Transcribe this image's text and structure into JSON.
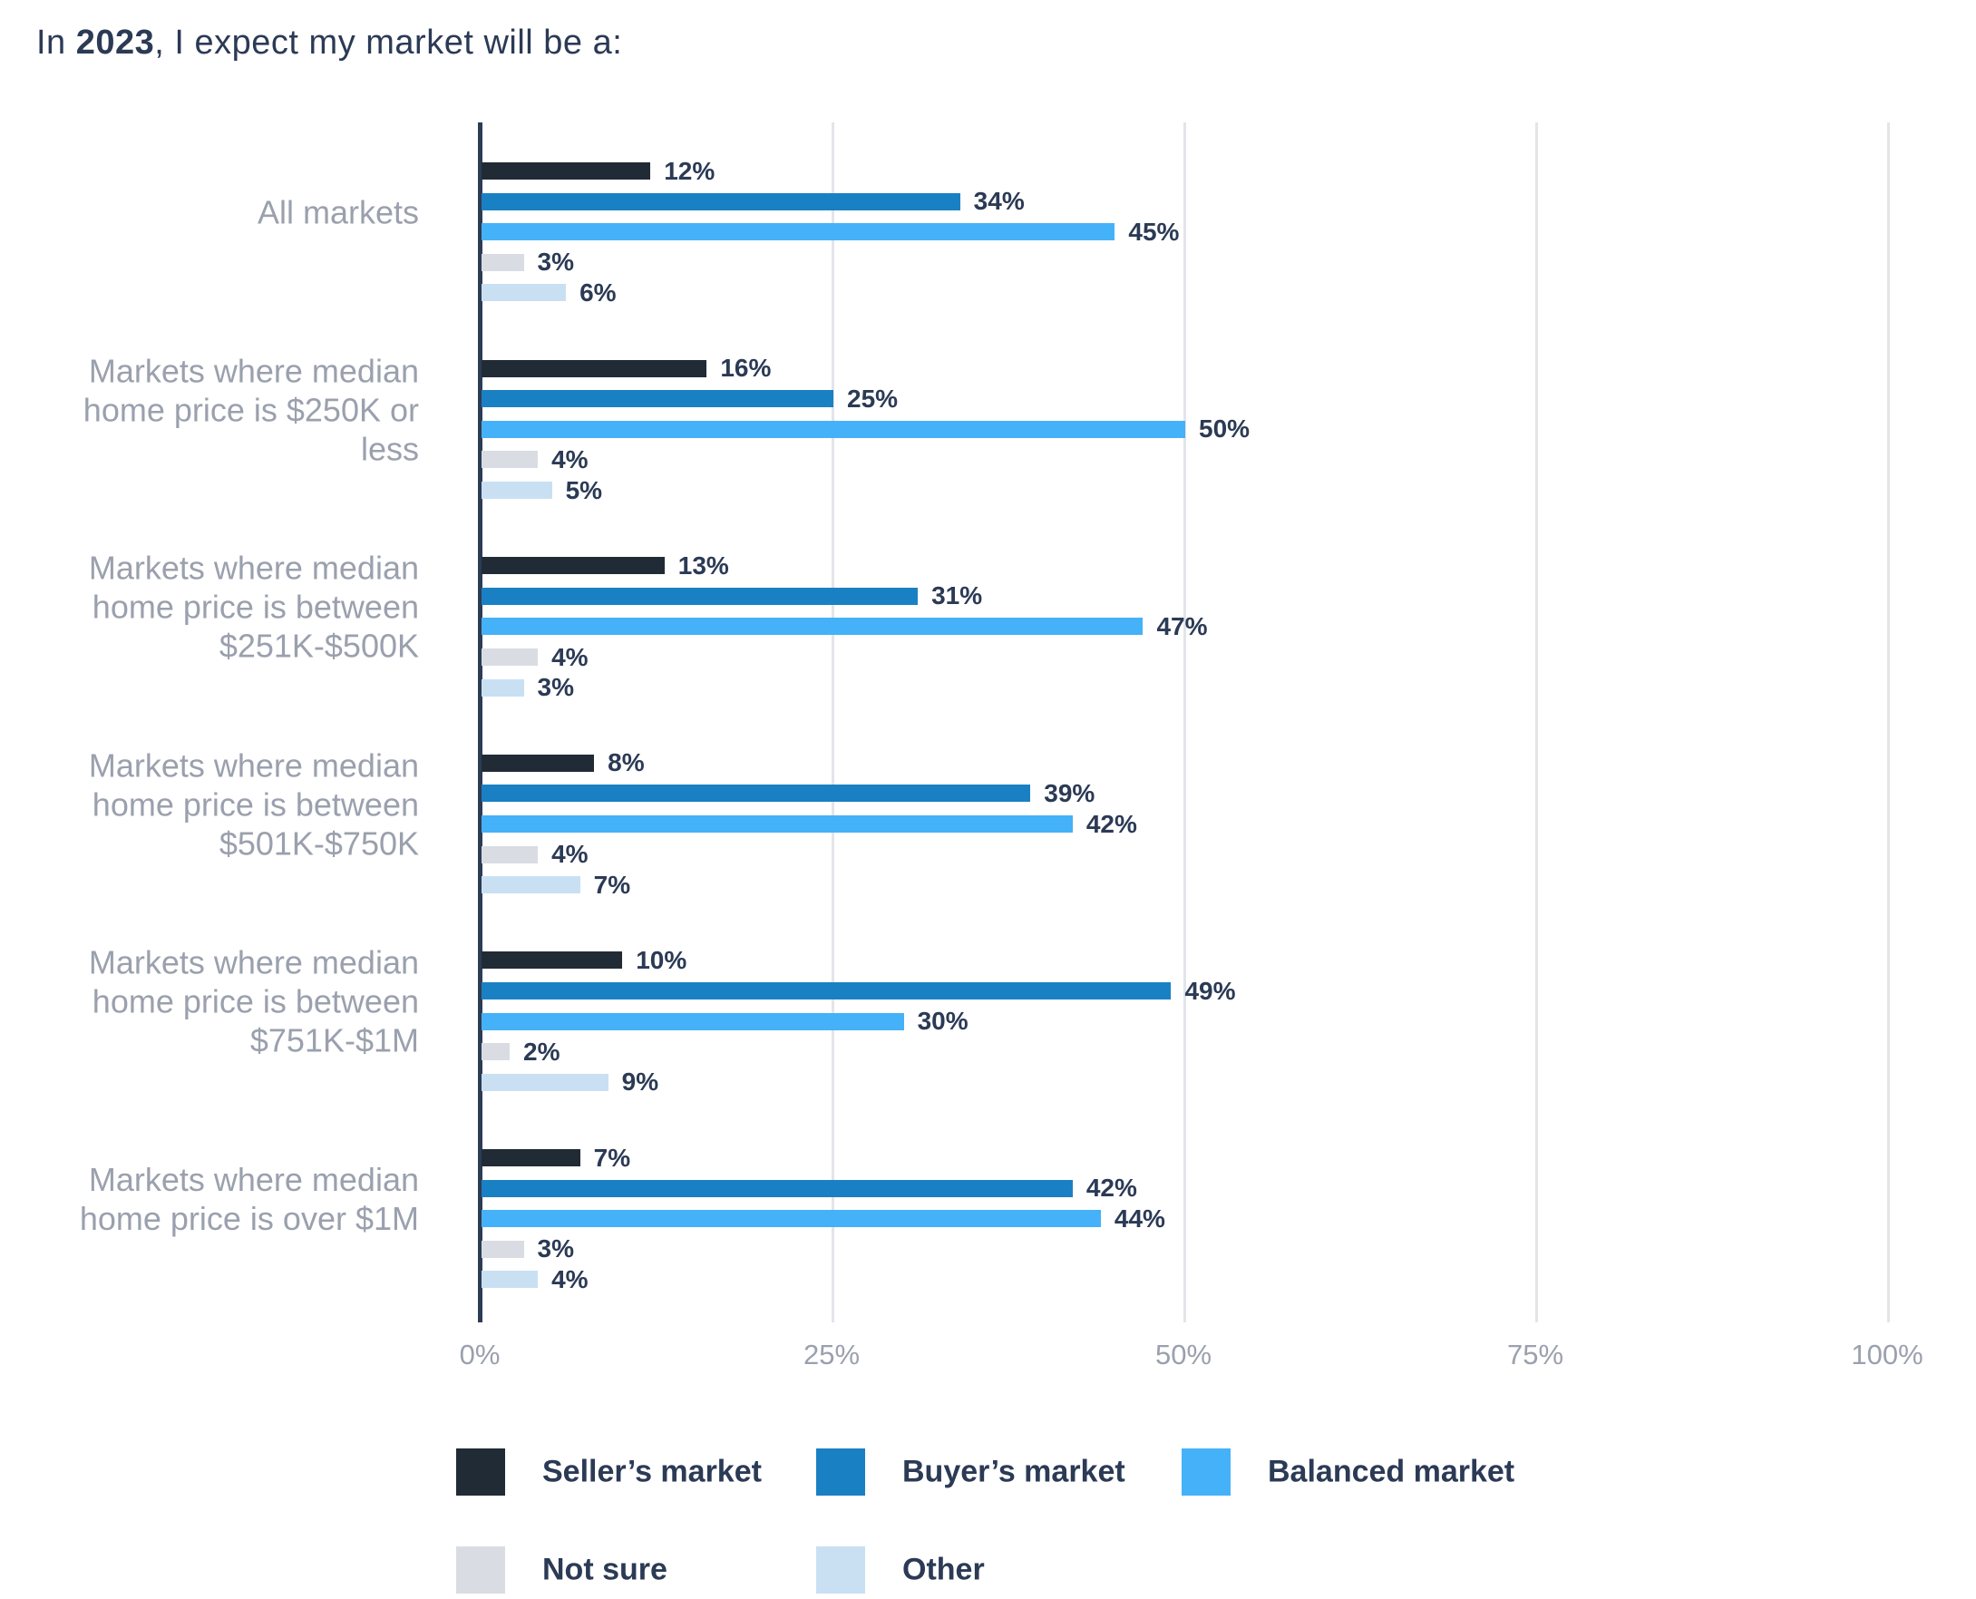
{
  "title": {
    "prefix": "In ",
    "year": "2023",
    "suffix": ", I expect my market will be a:"
  },
  "colors": {
    "background": "#ffffff",
    "axis_line": "#2d3b55",
    "gridline": "#e2e5e9",
    "title_text": "#2b3a55",
    "value_label_text": "#2b3a55",
    "category_label_text": "#9aa0ad",
    "tick_label_text": "#9aa0ad",
    "legend_label_text": "#2b3a55"
  },
  "chart_data": {
    "type": "bar",
    "orientation": "horizontal",
    "title": "In 2023, I expect my market will be a:",
    "value_suffix": "%",
    "gridlines": true,
    "value_labels_shown": true,
    "categories": [
      [
        "All markets"
      ],
      [
        "Markets where median",
        "home price is $250K or less"
      ],
      [
        "Markets where median",
        "home price is between",
        "$251K-$500K"
      ],
      [
        "Markets where median",
        "home price is between",
        "$501K-$750K"
      ],
      [
        "Markets where median",
        "home price is between",
        "$751K-$1M"
      ],
      [
        "Markets where median",
        "home price is over $1M"
      ]
    ],
    "series": [
      {
        "name": "Seller’s market",
        "color": "#212b36",
        "values": [
          12,
          16,
          13,
          8,
          10,
          7
        ]
      },
      {
        "name": "Buyer’s market",
        "color": "#1a80c4",
        "values": [
          34,
          25,
          31,
          39,
          49,
          42
        ]
      },
      {
        "name": "Balanced market",
        "color": "#45b1f8",
        "values": [
          45,
          50,
          47,
          42,
          30,
          44
        ]
      },
      {
        "name": "Not sure",
        "color": "#d9dde3",
        "values": [
          3,
          4,
          4,
          4,
          2,
          3
        ]
      },
      {
        "name": "Other",
        "color": "#c9e0f3",
        "values": [
          6,
          5,
          3,
          7,
          9,
          4
        ]
      }
    ],
    "x_axis": {
      "min": 0,
      "max": 100,
      "ticks": [
        "0%",
        "25%",
        "50%",
        "75%",
        "100%"
      ]
    },
    "legend": {
      "position": "bottom",
      "rows": [
        [
          "Seller’s market",
          "Buyer’s market",
          "Balanced market"
        ],
        [
          "Not sure",
          "Other"
        ]
      ]
    }
  }
}
